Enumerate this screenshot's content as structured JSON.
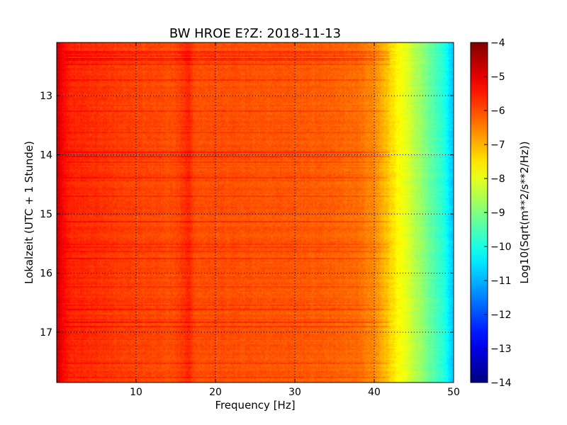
{
  "chart_data": {
    "type": "heatmap",
    "title": "BW HROE E?Z: 2018-11-13",
    "xlabel": "Frequency [Hz]",
    "ylabel": "Lokalzeit (UTC + 1 Stunde)",
    "xlim": [
      0,
      50
    ],
    "ylim_hours": [
      12.1,
      17.85
    ],
    "y_inverted": true,
    "x_ticks": [
      10,
      20,
      30,
      40,
      50
    ],
    "x_tick_labels": [
      "10",
      "20",
      "30",
      "40",
      "50"
    ],
    "y_ticks": [
      13,
      14,
      15,
      16,
      17
    ],
    "y_tick_labels": [
      "13",
      "14",
      "15",
      "16",
      "17"
    ],
    "grid": true,
    "colorbar": {
      "label": "Log10(Sqrt(m**2/s**2/Hz))",
      "range": [
        -14,
        -4
      ],
      "ticks": [
        -4,
        -5,
        -6,
        -7,
        -8,
        -9,
        -10,
        -11,
        -12,
        -13,
        -14
      ],
      "tick_labels": [
        "−4",
        "−5",
        "−6",
        "−7",
        "−8",
        "−9",
        "−10",
        "−11",
        "−12",
        "−13",
        "−14"
      ],
      "colormap": "jet"
    },
    "spectrum_profile": {
      "frequency_hz": [
        0,
        0.5,
        1,
        2,
        5,
        10,
        15,
        16.7,
        17.5,
        20,
        25,
        30,
        35,
        38,
        40,
        41,
        42,
        43,
        44,
        45,
        46,
        47,
        48,
        49,
        49.5,
        50
      ],
      "log_amplitude": [
        -4.6,
        -5.0,
        -5.4,
        -5.6,
        -5.7,
        -5.9,
        -6.0,
        -5.6,
        -6.0,
        -6.0,
        -6.05,
        -6.1,
        -6.2,
        -6.3,
        -6.6,
        -6.9,
        -7.3,
        -7.7,
        -8.0,
        -8.4,
        -8.8,
        -9.2,
        -9.6,
        -10.0,
        -10.5,
        -10.8
      ]
    }
  }
}
